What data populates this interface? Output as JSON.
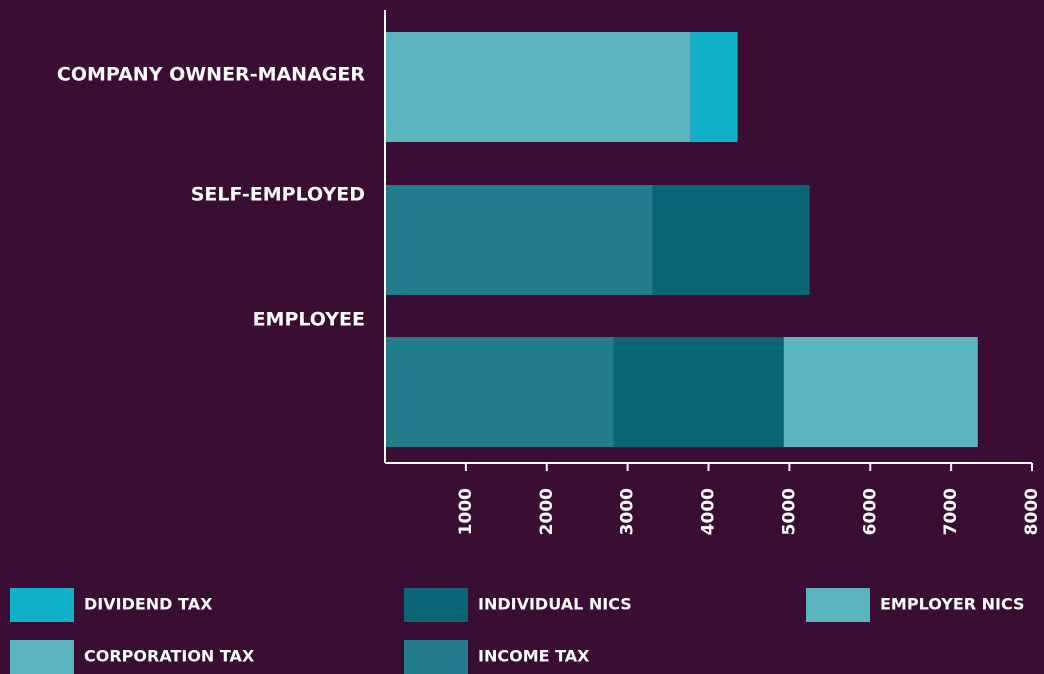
{
  "chart_data": {
    "type": "stacked-barh",
    "categories": [
      "COMPANY OWNER-MANAGER",
      "SELF-EMPLOYED",
      "EMPLOYEE"
    ],
    "series": [
      {
        "name": "DIVIDEND TAX",
        "color": "#0fb0c8",
        "values": [
          580,
          null,
          null
        ]
      },
      {
        "name": "INDIVIDUAL NICS",
        "color": "#0a6677",
        "values": [
          null,
          1940,
          2100
        ]
      },
      {
        "name": "EMPLOYER NICS",
        "color": "#5ab4bf",
        "values": [
          null,
          null,
          2400
        ]
      },
      {
        "name": "CORPORATION TAX",
        "color": "#5ab4bf",
        "values": [
          3780,
          null,
          null
        ]
      },
      {
        "name": "INCOME TAX",
        "color": "#227c8c",
        "values": [
          null,
          3310,
          2830
        ]
      }
    ],
    "xlim": [
      0,
      8000
    ],
    "xticks": [
      1000,
      2000,
      3000,
      4000,
      5000,
      6000,
      7000,
      8000
    ],
    "legend": "bottom"
  }
}
